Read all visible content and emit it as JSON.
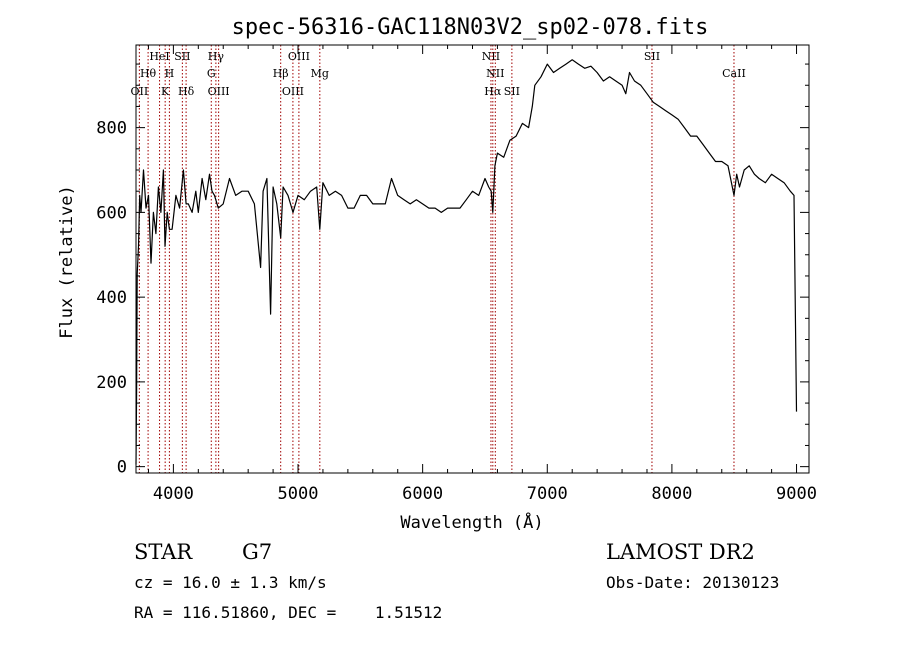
{
  "chart_data": {
    "type": "line",
    "title": "spec-56316-GAC118N03V2_sp02-078.fits",
    "xlabel": "Wavelength (Å)",
    "ylabel": "Flux (relative)",
    "xlim": [
      3700,
      9100
    ],
    "ylim": [
      -15,
      995
    ],
    "xticks": [
      4000,
      5000,
      6000,
      7000,
      8000,
      9000
    ],
    "yticks": [
      0,
      200,
      400,
      600,
      800
    ],
    "grid": false,
    "series": [
      {
        "x": [
          3700,
          3705,
          3710,
          3720,
          3730,
          3740,
          3760,
          3780,
          3800,
          3820,
          3840,
          3860,
          3880,
          3900,
          3920,
          3933,
          3950,
          3968,
          3990,
          4020,
          4050,
          4080,
          4102,
          4120,
          4150,
          4180,
          4200,
          4230,
          4260,
          4290,
          4310,
          4330,
          4360,
          4400,
          4450,
          4500,
          4550,
          4600,
          4650,
          4700,
          4720,
          4750,
          4780,
          4800,
          4830,
          4861,
          4880,
          4920,
          4960,
          5000,
          5050,
          5100,
          5150,
          5175,
          5200,
          5250,
          5300,
          5350,
          5400,
          5450,
          5500,
          5550,
          5600,
          5650,
          5700,
          5750,
          5800,
          5850,
          5900,
          5950,
          6000,
          6050,
          6100,
          6150,
          6200,
          6250,
          6300,
          6350,
          6400,
          6450,
          6500,
          6530,
          6550,
          6563,
          6580,
          6600,
          6650,
          6700,
          6750,
          6800,
          6850,
          6880,
          6900,
          6950,
          7000,
          7050,
          7100,
          7150,
          7200,
          7250,
          7300,
          7350,
          7400,
          7450,
          7500,
          7550,
          7600,
          7630,
          7660,
          7700,
          7750,
          7800,
          7850,
          7900,
          7950,
          8000,
          8050,
          8100,
          8150,
          8200,
          8250,
          8300,
          8350,
          8400,
          8450,
          8498,
          8520,
          8542,
          8580,
          8620,
          8662,
          8700,
          8750,
          8800,
          8850,
          8900,
          8950,
          8980,
          9000
        ],
        "values": [
          5,
          175,
          455,
          520,
          640,
          600,
          700,
          610,
          640,
          480,
          600,
          550,
          660,
          600,
          700,
          520,
          600,
          560,
          560,
          640,
          610,
          700,
          620,
          620,
          600,
          650,
          600,
          680,
          630,
          690,
          650,
          640,
          610,
          620,
          680,
          640,
          650,
          650,
          620,
          470,
          650,
          680,
          360,
          660,
          620,
          540,
          660,
          640,
          600,
          640,
          630,
          650,
          660,
          560,
          670,
          640,
          650,
          640,
          610,
          610,
          640,
          640,
          620,
          620,
          620,
          680,
          640,
          630,
          620,
          630,
          620,
          610,
          610,
          600,
          610,
          610,
          610,
          630,
          650,
          640,
          680,
          660,
          650,
          600,
          710,
          740,
          730,
          770,
          780,
          810,
          800,
          850,
          900,
          920,
          950,
          930,
          940,
          950,
          960,
          950,
          940,
          945,
          930,
          910,
          920,
          910,
          900,
          880,
          930,
          910,
          900,
          880,
          860,
          850,
          840,
          830,
          820,
          800,
          780,
          780,
          760,
          740,
          720,
          720,
          710,
          640,
          690,
          660,
          700,
          710,
          690,
          680,
          670,
          690,
          680,
          670,
          650,
          640,
          130
        ],
        "color": "#000000"
      }
    ],
    "line_markers": [
      {
        "label": "OII",
        "x": 3727,
        "tier": 3
      },
      {
        "label": "Hθ",
        "x": 3797,
        "tier": 2
      },
      {
        "label": "HeI",
        "x": 3889,
        "tier": 1
      },
      {
        "label": "K",
        "x": 3934,
        "tier": 3
      },
      {
        "label": "H",
        "x": 3968,
        "tier": 2
      },
      {
        "label": "SII",
        "x": 4072,
        "tier": 1
      },
      {
        "label": "Hδ",
        "x": 4102,
        "tier": 3
      },
      {
        "label": "G",
        "x": 4304,
        "tier": 2
      },
      {
        "label": "Hγ",
        "x": 4341,
        "tier": 1
      },
      {
        "label": "OIII",
        "x": 4363,
        "tier": 3
      },
      {
        "label": "Hβ",
        "x": 4861,
        "tier": 2
      },
      {
        "label": "OIII",
        "x": 4959,
        "tier": 3
      },
      {
        "label": "OIII",
        "x": 5007,
        "tier": 1
      },
      {
        "label": "Mg",
        "x": 5175,
        "tier": 2
      },
      {
        "label": "NII",
        "x": 6548,
        "tier": 1
      },
      {
        "label": "Hα",
        "x": 6563,
        "tier": 3
      },
      {
        "label": "NII",
        "x": 6583,
        "tier": 2
      },
      {
        "label": "SII",
        "x": 6716,
        "tier": 3
      },
      {
        "label": "SII",
        "x": 7840,
        "tier": 1
      },
      {
        "label": "CaII",
        "x": 8498,
        "tier": 2
      }
    ],
    "marker_color": "#a00000"
  },
  "info": {
    "object_class": "STAR",
    "subclass": "G7",
    "release": "LAMOST DR2",
    "redshift": "cz = 16.0 ± 1.3 km/s",
    "obs_date": "Obs-Date: 20130123",
    "coords": "RA = 116.51860, DEC =    1.51512"
  }
}
